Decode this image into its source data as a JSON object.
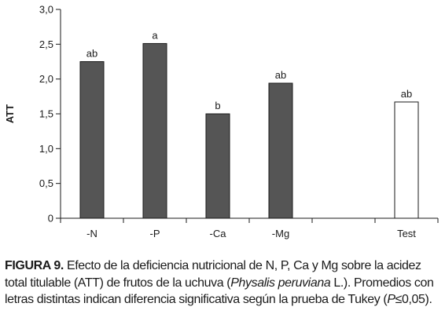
{
  "chart_data": {
    "type": "bar",
    "categories": [
      "-N",
      "-P",
      "-Ca",
      "-Mg",
      "",
      "Test"
    ],
    "values": [
      2.25,
      2.51,
      1.5,
      1.94,
      null,
      1.67
    ],
    "significance_letters": [
      "ab",
      "a",
      "b",
      "ab",
      "",
      "ab"
    ],
    "bar_fills": [
      "#555555",
      "#555555",
      "#555555",
      "#555555",
      "",
      "#ffffff"
    ],
    "title": "",
    "xlabel": "",
    "ylabel": "ATT",
    "ylim": [
      0,
      3.0
    ],
    "yticks": [
      "3,0",
      "2,5",
      "2,0",
      "1,5",
      "1,0",
      "0,5",
      "0"
    ],
    "ytick_values": [
      3.0,
      2.5,
      2.0,
      1.5,
      1.0,
      0.5,
      0
    ],
    "grid": false,
    "legend": "none"
  },
  "caption": {
    "figure_label": "FIGURA 9.",
    "text_1": " Efecto de la deficiencia nutricional de N, P, Ca y Mg sobre la acidez total titulable (ATT) de frutos de la uchuva (",
    "species": "Physalis peruviana",
    "text_2": " L.). Promedios con letras distintas indican diferencia significativa según la prueba de Tukey (",
    "p_symbol": "P",
    "text_3": "≤0,05)."
  },
  "colors": {
    "bar_fill": "#555555",
    "bar_stroke": "#1a1a1a",
    "control_fill": "#ffffff",
    "axis": "#1a1a1a",
    "text": "#1a1a1a"
  }
}
